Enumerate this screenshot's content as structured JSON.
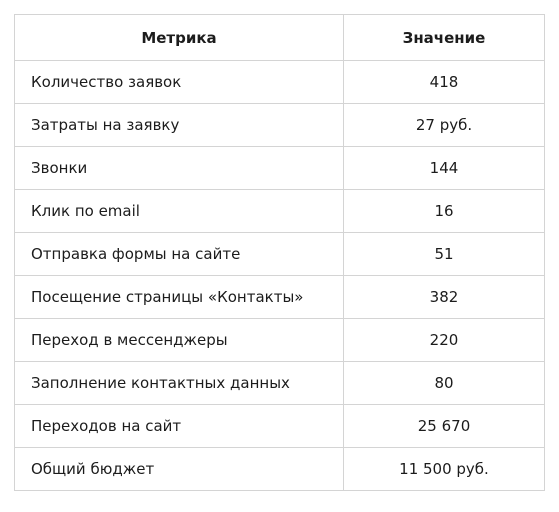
{
  "table": {
    "headers": {
      "metric": "Метрика",
      "value": "Значение"
    },
    "rows": [
      {
        "metric": "Количество заявок",
        "value": "418"
      },
      {
        "metric": "Затраты на заявку",
        "value": "27 руб."
      },
      {
        "metric": "Звонки",
        "value": "144"
      },
      {
        "metric": "Клик по email",
        "value": "16"
      },
      {
        "metric": "Отправка формы на сайте",
        "value": "51"
      },
      {
        "metric": "Посещение страницы «Контакты»",
        "value": "382"
      },
      {
        "metric": "Переход в мессенджеры",
        "value": "220"
      },
      {
        "metric": "Заполнение контактных данных",
        "value": "80"
      },
      {
        "metric": "Переходов на сайт",
        "value": "25 670"
      },
      {
        "metric": "Общий бюджет",
        "value": "11 500 руб."
      }
    ]
  }
}
